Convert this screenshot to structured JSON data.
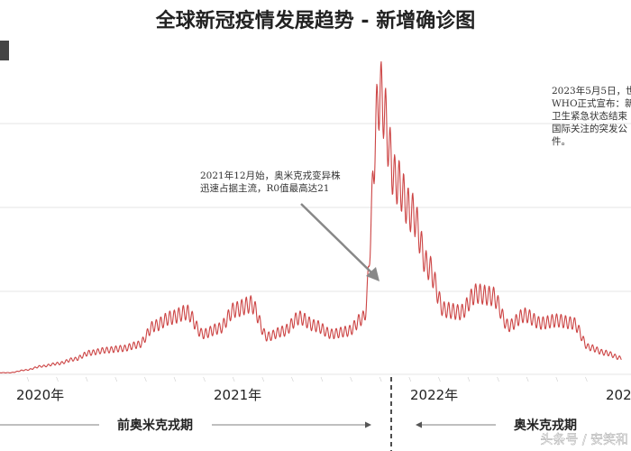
{
  "chart_data": {
    "type": "line",
    "title": "全球新冠疫情发展趋势 - 新增确诊图",
    "xlabel": "",
    "ylabel": "",
    "color": "#cc4444",
    "grid": true,
    "year_labels": [
      "2020年",
      "2021年",
      "2022年",
      "202"
    ],
    "x": [
      "2020-02",
      "2020-03",
      "2020-04",
      "2020-05",
      "2020-06",
      "2020-07",
      "2020-08",
      "2020-09",
      "2020-10",
      "2020-11",
      "2020-12",
      "2021-01",
      "2021-02",
      "2021-03",
      "2021-04",
      "2021-05",
      "2021-06",
      "2021-07",
      "2021-08",
      "2021-09",
      "2021-10",
      "2021-11",
      "2021-12",
      "2022-01",
      "2022-02",
      "2022-03",
      "2022-04",
      "2022-05",
      "2022-06",
      "2022-07",
      "2022-08",
      "2022-09",
      "2022-10",
      "2022-11",
      "2022-12",
      "2023-01",
      "2023-02",
      "2023-03",
      "2023-04"
    ],
    "values": [
      0.3,
      0.8,
      1.5,
      2.0,
      2.8,
      4.0,
      4.5,
      4.8,
      5.5,
      9.0,
      10.5,
      11.5,
      7.5,
      8.5,
      12.0,
      13.0,
      7.0,
      8.0,
      10.5,
      9.0,
      7.5,
      8.0,
      10.5,
      52.0,
      36.0,
      30.0,
      20.0,
      12.0,
      11.5,
      15.0,
      14.5,
      9.0,
      11.0,
      9.5,
      10.0,
      9.5,
      5.0,
      4.0,
      3.0
    ],
    "ylim": [
      0,
      55
    ],
    "periods": [
      {
        "label": "前奥米克戎期"
      },
      {
        "label": "奥米克戎期"
      }
    ],
    "annotations": [
      {
        "lines": [
          "2021年12月始，奥米克戎变异株",
          "迅速占据主流，R0值最高达21"
        ]
      },
      {
        "lines": [
          "2023年5月5日，世",
          "WHO正式宣布：新",
          "卫生紧急状态结束",
          "国际关注的突发公",
          "件。"
        ]
      }
    ],
    "watermark": "头条号 / 安笑和"
  }
}
